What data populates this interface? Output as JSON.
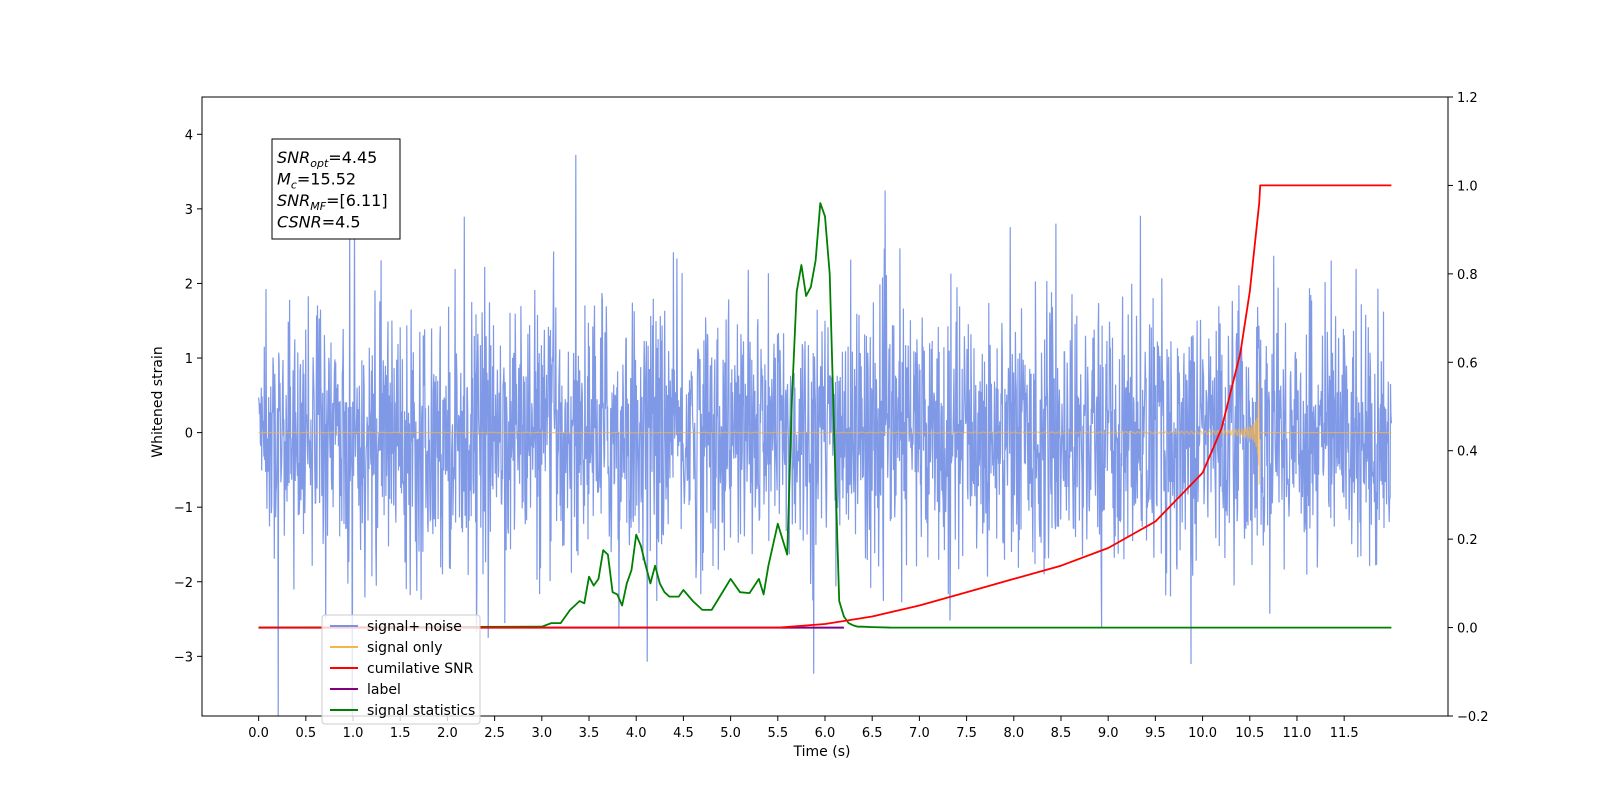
{
  "chart_data": {
    "type": "line",
    "xlabel": "Time (s)",
    "ylabel": "Whitened strain",
    "xlim": [
      -0.6,
      12.6
    ],
    "ylim": [
      -3.8,
      4.5
    ],
    "y2lim": [
      -0.2,
      1.2
    ],
    "x_ticks": [
      "0.0",
      "0.5",
      "1.0",
      "1.5",
      "2.0",
      "2.5",
      "3.0",
      "3.5",
      "4.0",
      "4.5",
      "5.0",
      "5.5",
      "6.0",
      "6.5",
      "7.0",
      "7.5",
      "8.0",
      "8.5",
      "9.0",
      "9.5",
      "10.0",
      "10.5",
      "11.0",
      "11.5"
    ],
    "y_ticks": [
      "4",
      "3",
      "2",
      "1",
      "0",
      "−1",
      "−2",
      "−3"
    ],
    "y2_ticks": [
      "1.2",
      "1.0",
      "0.8",
      "0.6",
      "0.4",
      "0.2",
      "0.0",
      "−0.2"
    ],
    "annotation": {
      "lines": [
        {
          "main": "SNR",
          "sub": "opt",
          "value": "=4.45"
        },
        {
          "main": "M",
          "sub": "c",
          "value": "=15.52"
        },
        {
          "main": "SNR",
          "sub": "MF",
          "value": "=[6.11]"
        },
        {
          "main": "CSNR",
          "sub": "",
          "value": "=4.5"
        }
      ]
    },
    "legend_position": "lower left",
    "series": [
      {
        "name": "signal+ noise",
        "color": "#7893e6",
        "axis": "left",
        "noise_sigma": 0.85,
        "x_range": [
          0.0,
          12.0
        ]
      },
      {
        "name": "signal only",
        "color": "#f5b54a",
        "axis": "left",
        "chirp_end": 10.6,
        "peak_amplitude": 0.7
      },
      {
        "name": "cumilative SNR",
        "color": "#ff0000",
        "axis": "right",
        "x": [
          0.0,
          5.5,
          6.0,
          6.5,
          7.0,
          7.5,
          8.0,
          8.5,
          9.0,
          9.5,
          10.0,
          10.2,
          10.4,
          10.5,
          10.6,
          10.61,
          12.0
        ],
        "y": [
          0.0,
          0.0,
          0.008,
          0.025,
          0.05,
          0.08,
          0.11,
          0.14,
          0.18,
          0.24,
          0.35,
          0.45,
          0.62,
          0.76,
          0.96,
          1.0,
          1.0
        ]
      },
      {
        "name": "label",
        "color": "#800080",
        "axis": "right",
        "x": [
          0.0,
          6.2
        ],
        "y": [
          0.0,
          0.0
        ]
      },
      {
        "name": "signal statistics",
        "color": "#008000",
        "axis": "right",
        "x": [
          0.0,
          3.0,
          3.1,
          3.2,
          3.3,
          3.35,
          3.4,
          3.45,
          3.5,
          3.55,
          3.6,
          3.65,
          3.7,
          3.75,
          3.8,
          3.85,
          3.9,
          3.95,
          4.0,
          4.05,
          4.1,
          4.15,
          4.2,
          4.25,
          4.3,
          4.35,
          4.4,
          4.45,
          4.5,
          4.6,
          4.7,
          4.8,
          4.9,
          5.0,
          5.1,
          5.2,
          5.3,
          5.35,
          5.4,
          5.5,
          5.6,
          5.65,
          5.7,
          5.75,
          5.8,
          5.85,
          5.9,
          5.95,
          6.0,
          6.05,
          6.1,
          6.15,
          6.2,
          6.25,
          6.3,
          6.35,
          6.4,
          6.5,
          6.7,
          7.0,
          12.0
        ],
        "y": [
          0.0,
          0.002,
          0.01,
          0.01,
          0.04,
          0.05,
          0.06,
          0.055,
          0.115,
          0.095,
          0.11,
          0.175,
          0.165,
          0.08,
          0.075,
          0.05,
          0.1,
          0.13,
          0.21,
          0.185,
          0.14,
          0.1,
          0.14,
          0.1,
          0.08,
          0.07,
          0.07,
          0.07,
          0.085,
          0.06,
          0.04,
          0.04,
          0.075,
          0.11,
          0.08,
          0.078,
          0.11,
          0.075,
          0.14,
          0.235,
          0.165,
          0.52,
          0.76,
          0.82,
          0.75,
          0.77,
          0.83,
          0.96,
          0.93,
          0.8,
          0.42,
          0.06,
          0.025,
          0.01,
          0.005,
          0.002,
          0.002,
          0.001,
          0.0,
          0.0,
          0.0
        ]
      }
    ]
  }
}
